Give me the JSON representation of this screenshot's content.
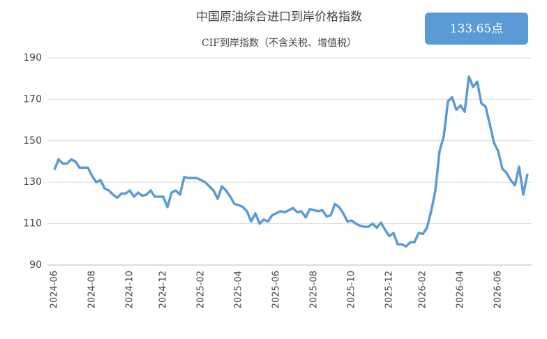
{
  "chart_data": {
    "type": "line",
    "title": "中国原油综合进口到岸价格指数",
    "subtitle": "CIF到岸指数（不含关税、增值税）",
    "annotation": "133.65点",
    "categories": [
      "2024-06",
      null,
      null,
      null,
      null,
      null,
      null,
      null,
      null,
      "2024-08",
      null,
      null,
      null,
      null,
      null,
      null,
      null,
      null,
      "2024-10",
      null,
      null,
      null,
      null,
      null,
      null,
      null,
      "2024-12",
      null,
      null,
      null,
      null,
      null,
      null,
      null,
      null,
      "2025-02",
      null,
      null,
      null,
      null,
      null,
      null,
      null,
      null,
      "2025-04",
      null,
      null,
      null,
      null,
      null,
      null,
      null,
      null,
      "2025-06",
      null,
      null,
      null,
      null,
      null,
      null,
      null,
      null,
      "2025-08",
      null,
      null,
      null,
      null,
      null,
      null,
      null,
      null,
      "2025-10",
      null,
      null,
      null,
      null,
      null,
      null,
      null,
      null,
      "2025-12",
      null,
      null,
      null,
      null,
      null,
      null,
      null,
      "2026-02",
      null,
      null,
      null,
      null,
      null,
      null,
      null,
      null,
      "2026-04",
      null,
      null,
      null,
      null,
      null,
      null,
      null,
      null,
      "2026-06",
      null,
      null,
      null,
      null,
      null,
      null,
      null
    ],
    "series": [
      {
        "name": "CIF到岸指数",
        "color": "#5b9bd5",
        "values": [
          136,
          141,
          139,
          139,
          141,
          140,
          137,
          137,
          137,
          133,
          130,
          131,
          127,
          126,
          124,
          122.5,
          124.5,
          124.5,
          126,
          123,
          125,
          123.5,
          124,
          126,
          123,
          123,
          123,
          118,
          125,
          126,
          124,
          132.5,
          132,
          132,
          132,
          131,
          130,
          128,
          126,
          122,
          128,
          126,
          123,
          119.5,
          119,
          118,
          116,
          111,
          115,
          110,
          112,
          111,
          114,
          115,
          116,
          115.5,
          116.5,
          117.5,
          115.5,
          116,
          113,
          117,
          116.5,
          116,
          116.5,
          113.5,
          114,
          119.5,
          118,
          115,
          111,
          111.5,
          110,
          109,
          108.5,
          108.5,
          110,
          108,
          110.5,
          107,
          104,
          105.5,
          100,
          100,
          99,
          101,
          101,
          105.5,
          105,
          108,
          116,
          126,
          145,
          152,
          169,
          171,
          165,
          167,
          164,
          181,
          176,
          178.5,
          168,
          166.5,
          158,
          149,
          145,
          136.5,
          134.5,
          131,
          128.5,
          137.5,
          124,
          134
        ]
      }
    ],
    "ylim": [
      90,
      190
    ],
    "yticks": [
      90,
      110,
      130,
      150,
      170,
      190
    ],
    "grid": true
  }
}
